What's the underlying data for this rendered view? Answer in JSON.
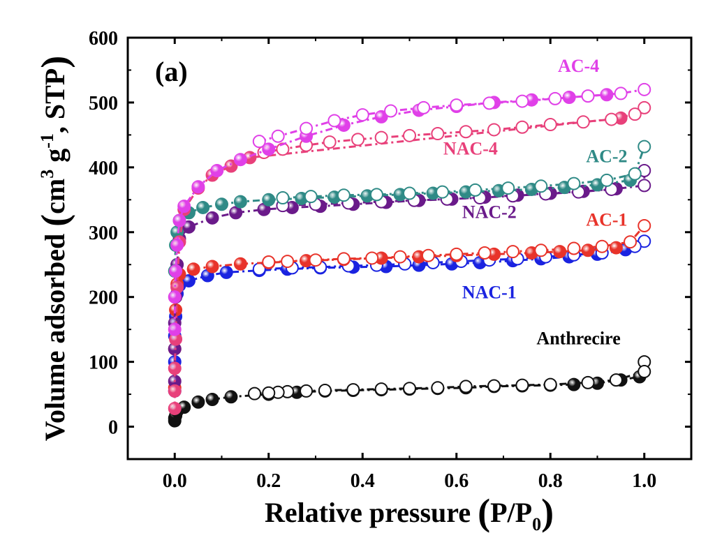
{
  "chart_data": {
    "type": "scatter",
    "panel_label": "(a)",
    "xlabel": "Relative pressure (P/P0)",
    "ylabel": "Volume adsorbed (cm3 g-1, STP)",
    "xlim": [
      -0.1,
      1.1
    ],
    "ylim": [
      -50,
      600
    ],
    "x_ticks": [
      0.0,
      0.2,
      0.4,
      0.6,
      0.8,
      1.0
    ],
    "x_tick_labels": [
      "0.0",
      "0.2",
      "0.4",
      "0.6",
      "0.8",
      "1.0"
    ],
    "y_ticks": [
      0,
      100,
      200,
      300,
      400,
      500,
      600
    ],
    "y_tick_labels": [
      "0",
      "100",
      "200",
      "300",
      "400",
      "500",
      "600"
    ],
    "grid": false,
    "series": [
      {
        "name": "Anthrecire",
        "color": "#111111",
        "line_style": "dash-dot",
        "adsorption": {
          "x": [
            0.0,
            0.0,
            0.002,
            0.005,
            0.02,
            0.05,
            0.08,
            0.12,
            0.2,
            0.26,
            0.32,
            0.38,
            0.44,
            0.5,
            0.56,
            0.62,
            0.68,
            0.74,
            0.8,
            0.85,
            0.9,
            0.95,
            0.99
          ],
          "y": [
            9,
            13,
            17,
            24,
            30,
            38,
            42,
            46,
            50,
            53,
            55,
            56,
            57,
            58,
            59,
            60,
            62,
            63,
            64,
            65,
            67,
            72,
            77
          ]
        },
        "desorption": {
          "x": [
            1.0,
            1.0,
            0.94,
            0.88,
            0.8,
            0.74,
            0.68,
            0.62,
            0.56,
            0.5,
            0.44,
            0.38,
            0.32,
            0.28,
            0.24,
            0.22,
            0.2,
            0.17
          ],
          "y": [
            100,
            85,
            72,
            68,
            65,
            64,
            63,
            62,
            60,
            59,
            58,
            57,
            56,
            55,
            54,
            53,
            52,
            51
          ]
        }
      },
      {
        "name": "NAC-1",
        "color": "#1a23e0",
        "line_style": "dash-dot",
        "adsorption": {
          "x": [
            0.0,
            0.0,
            0.0,
            0.002,
            0.005,
            0.01,
            0.03,
            0.07,
            0.11,
            0.18,
            0.24,
            0.31,
            0.38,
            0.45,
            0.52,
            0.59,
            0.65,
            0.72,
            0.78,
            0.84,
            0.9,
            0.96
          ],
          "y": [
            55,
            100,
            140,
            170,
            205,
            218,
            225,
            233,
            238,
            241,
            243,
            245,
            246,
            247,
            249,
            251,
            253,
            256,
            259,
            262,
            266,
            273
          ]
        },
        "desorption": {
          "x": [
            1.0,
            0.98,
            0.91,
            0.85,
            0.79,
            0.73,
            0.67,
            0.61,
            0.55,
            0.49,
            0.43,
            0.37,
            0.31,
            0.25,
            0.18
          ],
          "y": [
            286,
            278,
            268,
            265,
            262,
            259,
            257,
            255,
            253,
            251,
            249,
            248,
            246,
            245,
            243
          ]
        }
      },
      {
        "name": "AC-1",
        "color": "#e8332a",
        "line_style": "dash-dot",
        "adsorption": {
          "x": [
            0.0,
            0.0,
            0.002,
            0.005,
            0.01,
            0.04,
            0.08,
            0.14,
            0.2,
            0.28,
            0.36,
            0.44,
            0.52,
            0.6,
            0.68,
            0.76,
            0.82,
            0.88,
            0.94
          ],
          "y": [
            60,
            120,
            180,
            220,
            235,
            243,
            247,
            251,
            253,
            256,
            258,
            260,
            262,
            264,
            266,
            268,
            270,
            272,
            276
          ]
        },
        "desorption": {
          "x": [
            1.0,
            0.97,
            0.91,
            0.85,
            0.78,
            0.72,
            0.66,
            0.6,
            0.54,
            0.48,
            0.42,
            0.36,
            0.3,
            0.24,
            0.2
          ],
          "y": [
            310,
            285,
            278,
            275,
            272,
            270,
            268,
            266,
            264,
            262,
            260,
            259,
            257,
            255,
            254
          ]
        }
      },
      {
        "name": "NAC-2",
        "color": "#6a1a8a",
        "line_style": "dash-dot",
        "adsorption": {
          "x": [
            0.0,
            0.0,
            0.0,
            0.002,
            0.005,
            0.01,
            0.03,
            0.08,
            0.13,
            0.19,
            0.25,
            0.31,
            0.38,
            0.45,
            0.52,
            0.59,
            0.66,
            0.73,
            0.8,
            0.87,
            0.94
          ],
          "y": [
            70,
            120,
            160,
            200,
            250,
            290,
            308,
            322,
            330,
            335,
            338,
            340,
            343,
            346,
            349,
            351,
            354,
            357,
            360,
            363,
            367
          ]
        },
        "desorption": {
          "x": [
            1.0,
            1.0,
            0.93,
            0.86,
            0.79,
            0.72,
            0.65,
            0.58,
            0.51,
            0.44,
            0.37,
            0.3,
            0.23
          ],
          "y": [
            395,
            372,
            366,
            362,
            359,
            356,
            353,
            351,
            349,
            347,
            345,
            343,
            341
          ]
        }
      },
      {
        "name": "AC-2",
        "color": "#2f8a86",
        "line_style": "dash-dot",
        "adsorption": {
          "x": [
            0.0,
            0.002,
            0.005,
            0.01,
            0.03,
            0.06,
            0.1,
            0.14,
            0.2,
            0.27,
            0.34,
            0.41,
            0.48,
            0.55,
            0.62,
            0.69,
            0.76,
            0.83,
            0.9,
            0.97
          ],
          "y": [
            240,
            280,
            300,
            318,
            330,
            338,
            343,
            347,
            350,
            352,
            354,
            356,
            358,
            360,
            362,
            364,
            366,
            369,
            373,
            380
          ]
        },
        "desorption": {
          "x": [
            1.0,
            0.98,
            0.92,
            0.85,
            0.78,
            0.71,
            0.64,
            0.57,
            0.5,
            0.43,
            0.36,
            0.29,
            0.23
          ],
          "y": [
            432,
            390,
            380,
            375,
            371,
            368,
            365,
            362,
            360,
            358,
            357,
            355,
            353
          ]
        }
      },
      {
        "name": "NAC-4",
        "color": "#e8407a",
        "line_style": "dash-dot",
        "adsorption": {
          "x": [
            0.0,
            0.0,
            0.0,
            0.002,
            0.005,
            0.01,
            0.02,
            0.05,
            0.08,
            0.12,
            0.16,
            0.95
          ],
          "y": [
            28,
            55,
            90,
            135,
            215,
            285,
            335,
            368,
            388,
            402,
            415,
            476
          ]
        },
        "desorption": {
          "x": [
            1.0,
            0.98,
            0.93,
            0.87,
            0.8,
            0.74,
            0.68,
            0.62,
            0.56,
            0.5,
            0.44,
            0.39,
            0.33,
            0.28,
            0.23,
            0.19
          ],
          "y": [
            492,
            482,
            474,
            470,
            466,
            462,
            458,
            455,
            452,
            449,
            446,
            443,
            439,
            434,
            428,
            423
          ]
        }
      },
      {
        "name": "AC-4",
        "color": "#e040e8",
        "line_style": "dash-dot",
        "adsorption": {
          "x": [
            0.0,
            0.0,
            0.002,
            0.005,
            0.01,
            0.02,
            0.05,
            0.09,
            0.14,
            0.2,
            0.28,
            0.36,
            0.44,
            0.52,
            0.6,
            0.68,
            0.76,
            0.84,
            0.92
          ],
          "y": [
            150,
            200,
            240,
            280,
            318,
            340,
            370,
            395,
            412,
            428,
            448,
            465,
            478,
            488,
            494,
            500,
            504,
            508,
            512
          ]
        },
        "desorption": {
          "x": [
            1.0,
            0.95,
            0.88,
            0.81,
            0.74,
            0.67,
            0.6,
            0.53,
            0.46,
            0.4,
            0.34,
            0.28,
            0.22,
            0.18
          ],
          "y": [
            520,
            514,
            510,
            506,
            502,
            499,
            496,
            492,
            487,
            481,
            472,
            460,
            448,
            440
          ]
        }
      }
    ],
    "annotations": [
      {
        "text": "AC-4",
        "x": 0.86,
        "y": 547,
        "color": "#e040e8"
      },
      {
        "text": "NAC-4",
        "x": 0.63,
        "y": 420,
        "color": "#e8407a"
      },
      {
        "text": "AC-2",
        "x": 0.92,
        "y": 408,
        "color": "#2f8a86"
      },
      {
        "text": "NAC-2",
        "x": 0.67,
        "y": 322,
        "color": "#6a1a8a"
      },
      {
        "text": "AC-1",
        "x": 0.92,
        "y": 310,
        "color": "#e8332a"
      },
      {
        "text": "NAC-1",
        "x": 0.67,
        "y": 198,
        "color": "#1a23e0"
      },
      {
        "text": "Anthrecire",
        "x": 0.86,
        "y": 127,
        "color": "#000000"
      }
    ]
  }
}
